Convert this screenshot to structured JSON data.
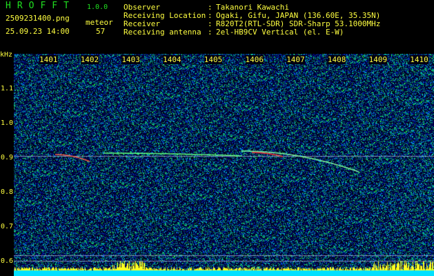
{
  "header": {
    "app": "HROFFT",
    "version": "1.0.0",
    "filename": "2509231400.png",
    "datetime": "25.09.23 14:00",
    "count_label": "meteor",
    "count": "57",
    "info": [
      {
        "label": "Observer",
        "value": "Takanori Kawachi"
      },
      {
        "label": "Receiving Location",
        "value": "Ogaki, Gifu, JAPAN (136.60E, 35.35N)"
      },
      {
        "label": "Receiver",
        "value": "R820T2(RTL-SDR) SDR-Sharp 53.1000MHz"
      },
      {
        "label": "Receiving antenna",
        "value": "2el-HB9CV Vertical (el. E-W)"
      }
    ]
  },
  "axis": {
    "unit": "kHz",
    "x_ticks": [
      "1401",
      "1402",
      "1403",
      "1404",
      "1405",
      "1406",
      "1407",
      "1408",
      "1409",
      "1410"
    ],
    "y_ticks": [
      "1.1",
      "1.0",
      "0.9",
      "0.8",
      "0.7",
      "0.6"
    ]
  },
  "colors": {
    "text": "#ffff40",
    "title": "#20e020",
    "background": "#000000"
  }
}
